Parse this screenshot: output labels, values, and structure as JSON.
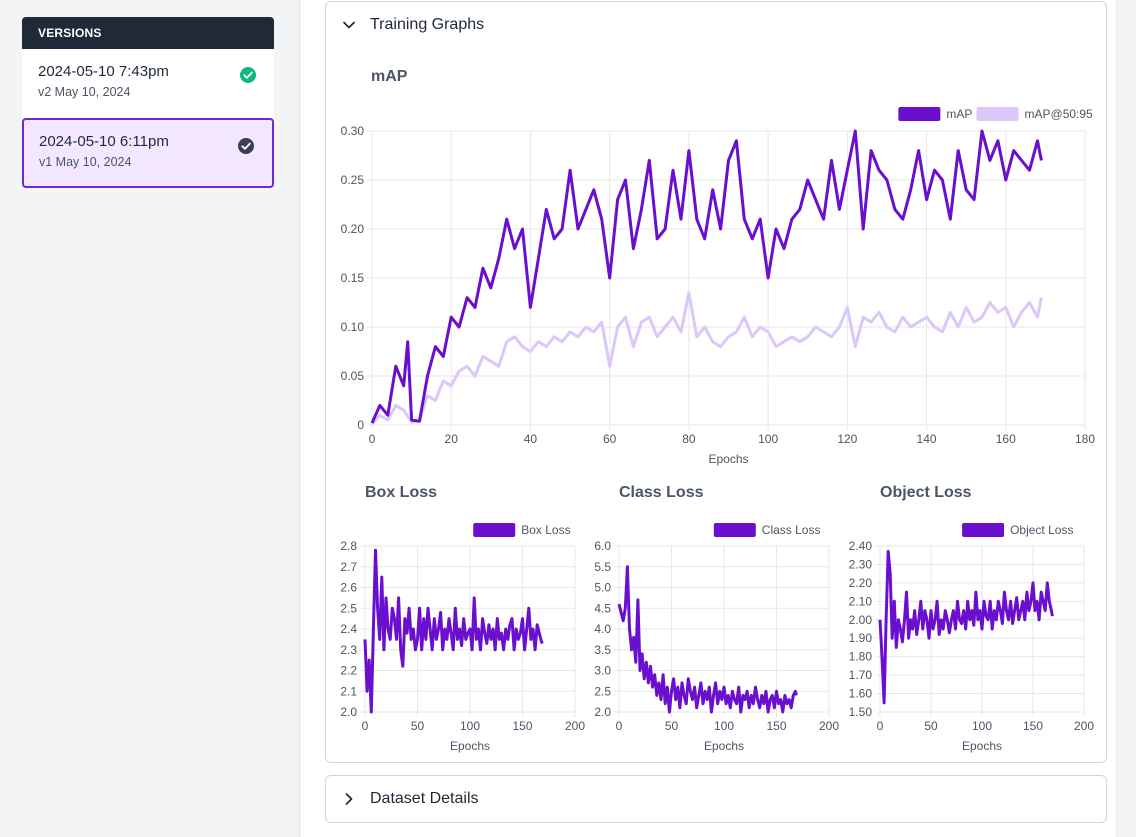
{
  "sidebar": {
    "header": "VERSIONS",
    "versions": [
      {
        "title": "2024-05-10 7:43pm",
        "subtitle": "v2 May 10, 2024",
        "status_icon": "check-circle-green",
        "selected": false
      },
      {
        "title": "2024-05-10 6:11pm",
        "subtitle": "v1 May 10, 2024",
        "status_icon": "check-circle-dark",
        "selected": true
      }
    ]
  },
  "panels": {
    "training_graphs": {
      "label": "Training Graphs",
      "expanded": true,
      "icon": "chevron-down-icon"
    },
    "dataset_details": {
      "label": "Dataset Details",
      "expanded": false,
      "icon": "chevron-right-icon"
    }
  },
  "colors": {
    "primary": "#6b0fcf",
    "secondary": "#dcc8f8",
    "grid": "#e5e7eb"
  },
  "chart_data": [
    {
      "id": "map",
      "type": "line",
      "title": "mAP",
      "xlabel": "Epochs",
      "xlim": [
        0,
        180
      ],
      "ylim": [
        0,
        0.3
      ],
      "xticks": [
        0,
        20,
        40,
        60,
        80,
        100,
        120,
        140,
        160,
        180
      ],
      "yticks": [
        0,
        0.05,
        0.1,
        0.15,
        0.2,
        0.25,
        0.3
      ],
      "ytick_labels": [
        "0",
        "0.05",
        "0.10",
        "0.15",
        "0.20",
        "0.25",
        "0.30"
      ],
      "legend": "top-right",
      "series": [
        {
          "name": "mAP",
          "color": "#6b0fcf",
          "x": [
            0,
            2,
            4,
            6,
            8,
            9,
            10,
            12,
            14,
            16,
            18,
            20,
            22,
            24,
            26,
            28,
            30,
            32,
            34,
            36,
            38,
            40,
            42,
            44,
            46,
            48,
            50,
            52,
            54,
            56,
            58,
            60,
            62,
            64,
            66,
            68,
            70,
            72,
            74,
            76,
            78,
            80,
            82,
            84,
            86,
            88,
            90,
            92,
            94,
            96,
            98,
            100,
            102,
            104,
            106,
            108,
            110,
            112,
            114,
            116,
            118,
            120,
            122,
            124,
            126,
            128,
            130,
            132,
            134,
            136,
            138,
            140,
            142,
            144,
            146,
            148,
            150,
            152,
            154,
            156,
            158,
            160,
            162,
            164,
            166,
            168,
            169
          ],
          "y": [
            0.002,
            0.02,
            0.01,
            0.06,
            0.04,
            0.085,
            0.005,
            0.004,
            0.05,
            0.08,
            0.07,
            0.11,
            0.1,
            0.13,
            0.12,
            0.16,
            0.14,
            0.17,
            0.21,
            0.18,
            0.2,
            0.12,
            0.17,
            0.22,
            0.19,
            0.2,
            0.26,
            0.2,
            0.22,
            0.24,
            0.21,
            0.15,
            0.23,
            0.25,
            0.18,
            0.22,
            0.27,
            0.19,
            0.2,
            0.26,
            0.21,
            0.28,
            0.21,
            0.19,
            0.24,
            0.2,
            0.27,
            0.29,
            0.21,
            0.19,
            0.21,
            0.15,
            0.2,
            0.18,
            0.21,
            0.22,
            0.25,
            0.23,
            0.21,
            0.27,
            0.22,
            0.26,
            0.3,
            0.2,
            0.28,
            0.26,
            0.25,
            0.22,
            0.21,
            0.24,
            0.28,
            0.23,
            0.26,
            0.25,
            0.21,
            0.28,
            0.24,
            0.23,
            0.3,
            0.27,
            0.29,
            0.25,
            0.28,
            0.27,
            0.26,
            0.29,
            0.27
          ]
        },
        {
          "name": "mAP@50:95",
          "color": "#dcc8f8",
          "x": [
            0,
            2,
            4,
            6,
            8,
            10,
            12,
            14,
            16,
            18,
            20,
            22,
            24,
            26,
            28,
            30,
            32,
            34,
            36,
            38,
            40,
            42,
            44,
            46,
            48,
            50,
            52,
            54,
            56,
            58,
            60,
            62,
            64,
            66,
            68,
            70,
            72,
            74,
            76,
            78,
            80,
            82,
            84,
            86,
            88,
            90,
            92,
            94,
            96,
            98,
            100,
            102,
            104,
            106,
            108,
            110,
            112,
            114,
            116,
            118,
            120,
            122,
            124,
            126,
            128,
            130,
            132,
            134,
            136,
            138,
            140,
            142,
            144,
            146,
            148,
            150,
            152,
            154,
            156,
            158,
            160,
            162,
            164,
            166,
            168,
            169
          ],
          "y": [
            0.001,
            0.01,
            0.005,
            0.02,
            0.015,
            0.003,
            0.004,
            0.03,
            0.025,
            0.045,
            0.04,
            0.055,
            0.06,
            0.05,
            0.07,
            0.065,
            0.06,
            0.085,
            0.09,
            0.08,
            0.075,
            0.085,
            0.08,
            0.09,
            0.085,
            0.095,
            0.09,
            0.1,
            0.095,
            0.105,
            0.06,
            0.1,
            0.11,
            0.08,
            0.105,
            0.11,
            0.09,
            0.1,
            0.11,
            0.095,
            0.135,
            0.09,
            0.1,
            0.085,
            0.08,
            0.09,
            0.095,
            0.11,
            0.09,
            0.1,
            0.095,
            0.08,
            0.085,
            0.09,
            0.085,
            0.09,
            0.1,
            0.095,
            0.09,
            0.1,
            0.12,
            0.08,
            0.11,
            0.105,
            0.115,
            0.1,
            0.095,
            0.11,
            0.1,
            0.105,
            0.11,
            0.1,
            0.095,
            0.115,
            0.1,
            0.12,
            0.105,
            0.11,
            0.125,
            0.115,
            0.12,
            0.1,
            0.115,
            0.125,
            0.11,
            0.13
          ]
        }
      ]
    },
    {
      "id": "box",
      "type": "line",
      "title": "Box Loss",
      "xlabel": "Epochs",
      "xlim": [
        0,
        200
      ],
      "ylim": [
        2.0,
        2.8
      ],
      "xticks": [
        0,
        50,
        100,
        150,
        200
      ],
      "yticks": [
        2.0,
        2.1,
        2.2,
        2.3,
        2.4,
        2.5,
        2.6,
        2.7,
        2.8
      ],
      "ytick_labels": [
        "2.0",
        "2.1",
        "2.2",
        "2.3",
        "2.4",
        "2.5",
        "2.6",
        "2.7",
        "2.8"
      ],
      "legend": "top-right",
      "series": [
        {
          "name": "Box Loss",
          "color": "#6b0fcf",
          "x": [
            0,
            2,
            4,
            6,
            8,
            10,
            12,
            14,
            16,
            18,
            20,
            22,
            24,
            26,
            28,
            30,
            32,
            34,
            36,
            38,
            40,
            42,
            44,
            46,
            48,
            50,
            52,
            54,
            56,
            58,
            60,
            62,
            64,
            66,
            68,
            70,
            72,
            74,
            76,
            78,
            80,
            82,
            84,
            86,
            88,
            90,
            92,
            94,
            96,
            98,
            100,
            102,
            104,
            106,
            108,
            110,
            112,
            114,
            116,
            118,
            120,
            122,
            124,
            126,
            128,
            130,
            132,
            134,
            136,
            138,
            140,
            142,
            144,
            146,
            148,
            150,
            152,
            154,
            156,
            158,
            160,
            162,
            164,
            166,
            168,
            169
          ],
          "y": [
            2.35,
            2.1,
            2.25,
            2.0,
            2.4,
            2.78,
            2.5,
            2.35,
            2.65,
            2.3,
            2.55,
            2.4,
            2.35,
            2.5,
            2.45,
            2.35,
            2.55,
            2.3,
            2.22,
            2.45,
            2.38,
            2.5,
            2.35,
            2.4,
            2.3,
            2.35,
            2.5,
            2.3,
            2.45,
            2.35,
            2.5,
            2.4,
            2.3,
            2.45,
            2.35,
            2.4,
            2.48,
            2.3,
            2.4,
            2.35,
            2.45,
            2.38,
            2.3,
            2.5,
            2.35,
            2.4,
            2.32,
            2.45,
            2.35,
            2.38,
            2.4,
            2.3,
            2.55,
            2.35,
            2.4,
            2.3,
            2.45,
            2.38,
            2.33,
            2.42,
            2.35,
            2.4,
            2.3,
            2.45,
            2.35,
            2.38,
            2.3,
            2.4,
            2.35,
            2.42,
            2.45,
            2.3,
            2.4,
            2.35,
            2.38,
            2.45,
            2.3,
            2.4,
            2.5,
            2.35,
            2.4,
            2.3,
            2.42,
            2.38,
            2.34,
            2.33
          ]
        }
      ]
    },
    {
      "id": "cls",
      "type": "line",
      "title": "Class Loss",
      "xlabel": "Epochs",
      "xlim": [
        0,
        200
      ],
      "ylim": [
        2.0,
        6.0
      ],
      "xticks": [
        0,
        50,
        100,
        150,
        200
      ],
      "yticks": [
        2.0,
        2.5,
        3.0,
        3.5,
        4.0,
        4.5,
        5.0,
        5.5,
        6.0
      ],
      "ytick_labels": [
        "2.0",
        "2.5",
        "3.0",
        "3.5",
        "4.0",
        "4.5",
        "5.0",
        "5.5",
        "6.0"
      ],
      "legend": "top-right",
      "series": [
        {
          "name": "Class Loss",
          "color": "#6b0fcf",
          "x": [
            0,
            2,
            4,
            6,
            8,
            10,
            12,
            14,
            16,
            18,
            20,
            22,
            24,
            26,
            28,
            30,
            32,
            34,
            36,
            38,
            40,
            42,
            44,
            46,
            48,
            50,
            52,
            54,
            56,
            58,
            60,
            62,
            64,
            66,
            68,
            70,
            72,
            74,
            76,
            78,
            80,
            82,
            84,
            86,
            88,
            90,
            92,
            94,
            96,
            98,
            100,
            102,
            104,
            106,
            108,
            110,
            112,
            114,
            116,
            118,
            120,
            122,
            124,
            126,
            128,
            130,
            132,
            134,
            136,
            138,
            140,
            142,
            144,
            146,
            148,
            150,
            152,
            154,
            156,
            158,
            160,
            162,
            164,
            166,
            168,
            169
          ],
          "y": [
            4.6,
            4.4,
            4.2,
            4.5,
            5.5,
            4.0,
            3.5,
            3.8,
            3.2,
            4.7,
            3.0,
            3.4,
            2.8,
            3.2,
            2.7,
            3.1,
            2.6,
            2.9,
            2.4,
            2.7,
            2.3,
            2.9,
            2.2,
            2.6,
            2.0,
            2.5,
            2.8,
            2.3,
            2.6,
            2.1,
            2.7,
            2.4,
            2.2,
            2.8,
            2.5,
            2.3,
            2.6,
            2.1,
            2.4,
            2.7,
            2.2,
            2.5,
            2.3,
            2.6,
            2.0,
            2.4,
            2.7,
            2.2,
            2.5,
            2.3,
            2.6,
            2.2,
            2.4,
            2.1,
            2.5,
            2.3,
            2.2,
            2.6,
            2.0,
            2.4,
            2.3,
            2.5,
            2.1,
            2.4,
            2.2,
            2.6,
            2.3,
            2.1,
            2.4,
            2.2,
            2.5,
            2.0,
            2.3,
            2.4,
            2.1,
            2.5,
            2.2,
            2.3,
            2.0,
            2.4,
            2.2,
            2.3,
            2.1,
            2.4,
            2.5,
            2.4
          ]
        }
      ]
    },
    {
      "id": "obj",
      "type": "line",
      "title": "Object Loss",
      "xlabel": "Epochs",
      "xlim": [
        0,
        200
      ],
      "ylim": [
        1.5,
        2.4
      ],
      "xticks": [
        0,
        50,
        100,
        150,
        200
      ],
      "yticks": [
        1.5,
        1.6,
        1.7,
        1.8,
        1.9,
        2.0,
        2.1,
        2.2,
        2.3,
        2.4
      ],
      "ytick_labels": [
        "1.50",
        "1.60",
        "1.70",
        "1.80",
        "1.90",
        "2.00",
        "2.10",
        "2.20",
        "2.30",
        "2.40"
      ],
      "legend": "top-right",
      "series": [
        {
          "name": "Object Loss",
          "color": "#6b0fcf",
          "x": [
            0,
            2,
            4,
            6,
            8,
            10,
            12,
            14,
            16,
            18,
            20,
            22,
            24,
            26,
            28,
            30,
            32,
            34,
            36,
            38,
            40,
            42,
            44,
            46,
            48,
            50,
            52,
            54,
            56,
            58,
            60,
            62,
            64,
            66,
            68,
            70,
            72,
            74,
            76,
            78,
            80,
            82,
            84,
            86,
            88,
            90,
            92,
            94,
            96,
            98,
            100,
            102,
            104,
            106,
            108,
            110,
            112,
            114,
            116,
            118,
            120,
            122,
            124,
            126,
            128,
            130,
            132,
            134,
            136,
            138,
            140,
            142,
            144,
            146,
            148,
            150,
            152,
            154,
            156,
            158,
            160,
            162,
            164,
            166,
            168,
            169
          ],
          "y": [
            2.0,
            1.8,
            1.55,
            2.0,
            2.37,
            2.25,
            1.9,
            2.1,
            1.85,
            2.0,
            1.95,
            1.88,
            2.0,
            2.15,
            1.9,
            2.0,
            1.95,
            2.05,
            1.92,
            2.0,
            2.1,
            1.95,
            2.05,
            2.0,
            1.9,
            2.05,
            1.95,
            2.0,
            2.1,
            1.92,
            2.0,
            1.95,
            2.05,
            2.0,
            1.93,
            2.0,
            2.05,
            1.95,
            2.1,
            2.0,
            1.98,
            2.05,
            1.95,
            2.1,
            2.0,
            2.05,
            1.97,
            2.15,
            2.0,
            2.05,
            1.95,
            2.1,
            2.02,
            2.0,
            2.1,
            1.95,
            2.05,
            2.0,
            2.1,
            2.05,
            1.98,
            2.15,
            2.05,
            2.0,
            2.1,
            1.98,
            2.05,
            2.12,
            2.0,
            2.05,
            2.1,
            2.0,
            2.15,
            2.05,
            2.1,
            2.2,
            2.05,
            2.1,
            2.0,
            2.15,
            2.1,
            2.05,
            2.2,
            2.1,
            2.05,
            2.02
          ]
        }
      ]
    }
  ]
}
